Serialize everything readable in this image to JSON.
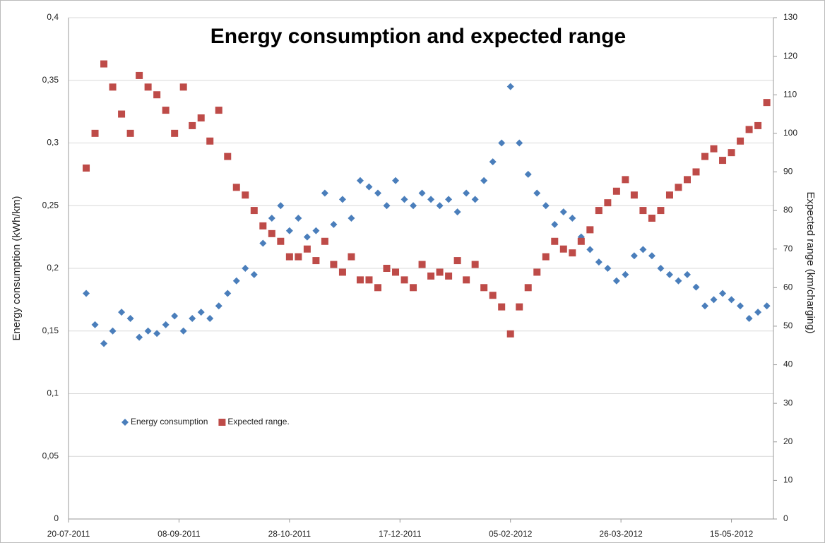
{
  "chart_data": {
    "type": "scatter",
    "title": "Energy consumption and expected range",
    "y_label": "Energy consumption (kWh/km)",
    "y2_label": "Expected range (km/charging)",
    "x": [
      "2011-07-28",
      "2011-08-01",
      "2011-08-05",
      "2011-08-09",
      "2011-08-13",
      "2011-08-17",
      "2011-08-21",
      "2011-08-25",
      "2011-08-29",
      "2011-09-02",
      "2011-09-06",
      "2011-09-10",
      "2011-09-14",
      "2011-09-18",
      "2011-09-22",
      "2011-09-26",
      "2011-09-30",
      "2011-10-04",
      "2011-10-08",
      "2011-10-12",
      "2011-10-16",
      "2011-10-20",
      "2011-10-24",
      "2011-10-28",
      "2011-11-01",
      "2011-11-05",
      "2011-11-09",
      "2011-11-13",
      "2011-11-17",
      "2011-11-21",
      "2011-11-25",
      "2011-11-29",
      "2011-12-03",
      "2011-12-07",
      "2011-12-11",
      "2011-12-15",
      "2011-12-19",
      "2011-12-23",
      "2011-12-27",
      "2011-12-31",
      "2012-01-04",
      "2012-01-08",
      "2012-01-12",
      "2012-01-16",
      "2012-01-20",
      "2012-01-24",
      "2012-01-28",
      "2012-02-01",
      "2012-02-05",
      "2012-02-09",
      "2012-02-13",
      "2012-02-17",
      "2012-02-21",
      "2012-02-25",
      "2012-02-29",
      "2012-03-04",
      "2012-03-08",
      "2012-03-12",
      "2012-03-16",
      "2012-03-20",
      "2012-03-24",
      "2012-03-28",
      "2012-04-01",
      "2012-04-05",
      "2012-04-09",
      "2012-04-13",
      "2012-04-17",
      "2012-04-21",
      "2012-04-25",
      "2012-04-29",
      "2012-05-03",
      "2012-05-07",
      "2012-05-11",
      "2012-05-15",
      "2012-05-19",
      "2012-05-23",
      "2012-05-27",
      "2012-05-31"
    ],
    "series": [
      {
        "name": "Energy consumption",
        "color": "#4a7ebb",
        "marker": "diamond",
        "axis": "y",
        "values": [
          0.18,
          0.155,
          0.14,
          0.15,
          0.165,
          0.16,
          0.145,
          0.15,
          0.148,
          0.155,
          0.162,
          0.15,
          0.16,
          0.165,
          0.16,
          0.17,
          0.18,
          0.19,
          0.2,
          0.195,
          0.22,
          0.24,
          0.25,
          0.23,
          0.24,
          0.225,
          0.23,
          0.26,
          0.235,
          0.255,
          0.24,
          0.27,
          0.265,
          0.26,
          0.25,
          0.27,
          0.255,
          0.25,
          0.26,
          0.255,
          0.25,
          0.255,
          0.245,
          0.26,
          0.255,
          0.27,
          0.285,
          0.3,
          0.345,
          0.3,
          0.275,
          0.26,
          0.25,
          0.235,
          0.245,
          0.24,
          0.225,
          0.215,
          0.205,
          0.2,
          0.19,
          0.195,
          0.21,
          0.215,
          0.21,
          0.2,
          0.195,
          0.19,
          0.195,
          0.185,
          0.17,
          0.175,
          0.18,
          0.175,
          0.17,
          0.16,
          0.165,
          0.17
        ]
      },
      {
        "name": "Expected range.",
        "color": "#be4b48",
        "marker": "square",
        "axis": "y2",
        "values": [
          91,
          100,
          118,
          112,
          105,
          100,
          115,
          112,
          110,
          106,
          100,
          112,
          102,
          104,
          98,
          106,
          94,
          86,
          84,
          80,
          76,
          74,
          72,
          68,
          68,
          70,
          67,
          72,
          66,
          64,
          68,
          62,
          62,
          60,
          65,
          64,
          62,
          60,
          66,
          63,
          64,
          63,
          67,
          62,
          66,
          60,
          58,
          55,
          48,
          55,
          60,
          64,
          68,
          72,
          70,
          69,
          72,
          75,
          80,
          82,
          85,
          88,
          84,
          80,
          78,
          80,
          84,
          86,
          88,
          90,
          94,
          96,
          93,
          95,
          98,
          101,
          102,
          108
        ]
      }
    ],
    "xlim": [
      "2011-07-20",
      "2012-06-03"
    ],
    "xticks": [
      {
        "value": "2011-07-20",
        "label": "20-07-2011"
      },
      {
        "value": "2011-09-08",
        "label": "08-09-2011"
      },
      {
        "value": "2011-10-28",
        "label": "28-10-2011"
      },
      {
        "value": "2011-12-17",
        "label": "17-12-2011"
      },
      {
        "value": "2012-02-05",
        "label": "05-02-2012"
      },
      {
        "value": "2012-03-26",
        "label": "26-03-2012"
      },
      {
        "value": "2012-05-15",
        "label": "15-05-2012"
      }
    ],
    "ylim": [
      0,
      0.4
    ],
    "yticks": [
      0,
      {
        "value": 0.05,
        "label": "0,05"
      },
      {
        "value": 0.1,
        "label": "0,1"
      },
      {
        "value": 0.15,
        "label": "0,15"
      },
      {
        "value": 0.2,
        "label": "0,2"
      },
      {
        "value": 0.25,
        "label": "0,25"
      },
      {
        "value": 0.3,
        "label": "0,3"
      },
      {
        "value": 0.35,
        "label": "0,35"
      },
      {
        "value": 0.4,
        "label": "0,4"
      }
    ],
    "y2lim": [
      0,
      130
    ],
    "y2ticks": [
      0,
      10,
      20,
      30,
      40,
      50,
      60,
      70,
      80,
      90,
      100,
      110,
      120,
      130
    ],
    "grid": true,
    "legend": "lower left"
  }
}
